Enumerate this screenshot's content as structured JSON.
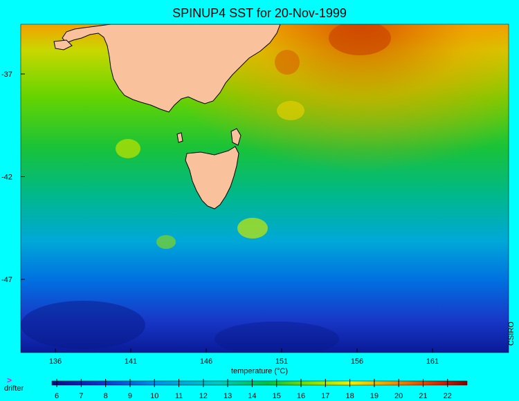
{
  "title": "SPINUP4 SST for 20-Nov-1999",
  "credit": "CSIRO",
  "axes": {
    "x_ticks": [
      "136",
      "141",
      "146",
      "151",
      "156",
      "161"
    ],
    "y_ticks": [
      "-37",
      "-42",
      "-47"
    ]
  },
  "colorbar": {
    "title": "temperature (°C)",
    "ticks": [
      "6",
      "7",
      "8",
      "9",
      "10",
      "11",
      "12",
      "13",
      "14",
      "15",
      "16",
      "17",
      "18",
      "19",
      "20",
      "21",
      "22"
    ],
    "range": [
      5.8,
      22.8
    ]
  },
  "legend": {
    "drifter_symbol": ">",
    "drifter_label": "drifter"
  },
  "colors": {
    "background": "#00ffff",
    "land": "#f9c29c",
    "drifter": "#ff00ff"
  }
}
